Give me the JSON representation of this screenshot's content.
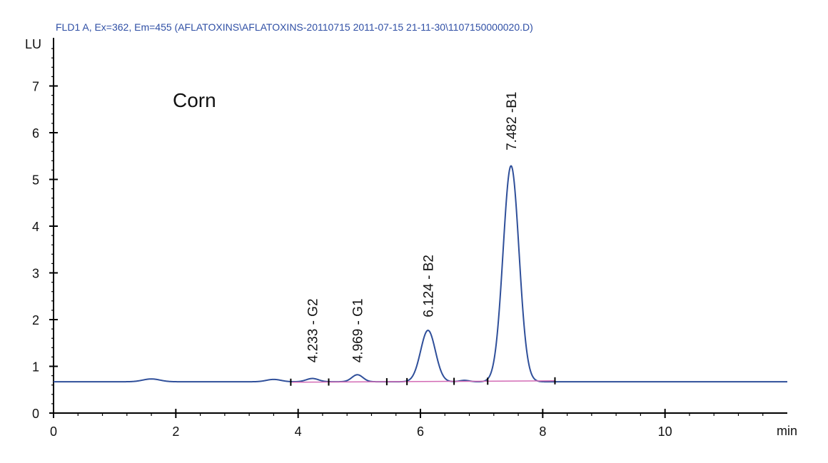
{
  "chart_data": {
    "type": "line",
    "title": "FLD1 A, Ex=362, Em=455 (AFLATOXINS\\AFLATOXINS-20110715 2011-07-15 21-11-30\\1107150000020.D)",
    "sample_label": "Corn",
    "ylabel": "LU",
    "xlabel": "min",
    "xlim": [
      0,
      12
    ],
    "ylim": [
      0,
      8
    ],
    "x_ticks": [
      "0",
      "2",
      "4",
      "6",
      "8",
      "10"
    ],
    "y_ticks": [
      "0",
      "1",
      "2",
      "3",
      "4",
      "5",
      "6",
      "7"
    ],
    "series": [
      {
        "color": "#2f4f9a",
        "baseline": 0.67,
        "bumps": [
          {
            "t": 1.6,
            "h": 0.06,
            "w": 0.14
          },
          {
            "t": 3.6,
            "h": 0.05,
            "w": 0.12
          },
          {
            "t": 4.233,
            "h": 0.07,
            "w": 0.1
          },
          {
            "t": 4.969,
            "h": 0.15,
            "w": 0.09
          },
          {
            "t": 6.124,
            "h": 1.1,
            "w": 0.12
          },
          {
            "t": 6.72,
            "h": 0.03,
            "w": 0.08
          },
          {
            "t": 7.482,
            "h": 4.62,
            "w": 0.13
          }
        ]
      }
    ],
    "integration_baseline": {
      "color": "#d36bb5",
      "x": [
        3.9,
        8.2
      ],
      "y": [
        0.66,
        0.69
      ]
    },
    "peak_markers": [
      3.88,
      4.5,
      5.45,
      5.78,
      6.55,
      7.1,
      8.2
    ],
    "peaks": [
      {
        "label": "4.233 - G2",
        "time": 4.233,
        "label_y": 1.08
      },
      {
        "label": "4.969 - G1",
        "time": 4.969,
        "label_y": 1.08
      },
      {
        "label": "6.124 - B2",
        "time": 6.124,
        "label_y": 2.05
      },
      {
        "label": "7.482 -B1",
        "time": 7.482,
        "label_y": 5.62
      }
    ]
  }
}
